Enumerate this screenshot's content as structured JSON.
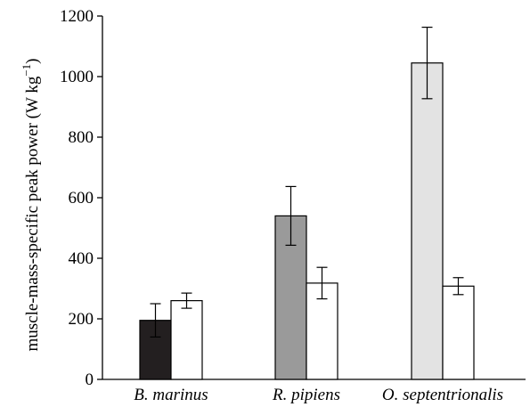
{
  "chart_data": {
    "type": "bar",
    "title": "",
    "xlabel": "",
    "ylabel": "muscle-mass-specific peak power (W kg",
    "ylabel_unit_sup": "−1",
    "ylabel_close": ")",
    "ylim": [
      0,
      1200
    ],
    "yticks": [
      "0",
      "200",
      "400",
      "600",
      "800",
      "1000",
      "1200"
    ],
    "categories": [
      "B. marinus",
      "R. pipiens",
      "O. septentrionalis"
    ],
    "grid": false,
    "legend": "none",
    "series": [
      {
        "fills": [
          "#231f20",
          "#9a9a9a",
          "#e3e3e3"
        ],
        "values": [
          195,
          540,
          1045
        ],
        "error": [
          55,
          97,
          118
        ]
      },
      {
        "fill": "#ffffff",
        "values": [
          260,
          318,
          308
        ],
        "error": [
          25,
          52,
          28
        ]
      }
    ]
  }
}
